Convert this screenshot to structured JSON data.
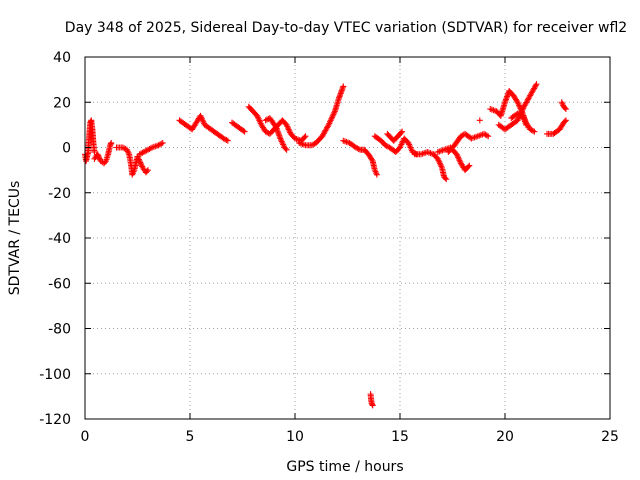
{
  "chart_data": {
    "type": "scatter",
    "title": "Day 348 of 2025, Sidereal Day-to-day VTEC variation (SDTVAR) for receiver wfl2",
    "xlabel": "GPS time / hours",
    "ylabel": "SDTVAR / TECUs",
    "xlim": [
      0,
      25
    ],
    "ylim": [
      -120,
      40
    ],
    "xticks": [
      "0",
      "5",
      "10",
      "15",
      "20",
      "25"
    ],
    "yticks": [
      "40",
      "20",
      "0",
      "-20",
      "-40",
      "-60",
      "-80",
      "-100",
      "-120"
    ],
    "grid": true,
    "marker": "plus",
    "color": "#ff0000",
    "segments": [
      [
        [
          0.0,
          -3
        ],
        [
          0.05,
          -6
        ],
        [
          0.1,
          -4
        ],
        [
          0.15,
          -2
        ]
      ],
      [
        [
          0.15,
          -2
        ],
        [
          0.2,
          5
        ],
        [
          0.25,
          11
        ],
        [
          0.3,
          12
        ],
        [
          0.35,
          8
        ],
        [
          0.4,
          2
        ],
        [
          0.45,
          -2
        ]
      ],
      [
        [
          0.45,
          -5
        ],
        [
          0.6,
          -3
        ],
        [
          0.75,
          -6
        ],
        [
          0.9,
          -7
        ],
        [
          1.0,
          -6
        ],
        [
          1.1,
          -3
        ],
        [
          1.15,
          -1
        ],
        [
          1.2,
          1
        ],
        [
          1.25,
          2
        ]
      ],
      [
        [
          1.5,
          0
        ],
        [
          1.8,
          0
        ],
        [
          2.0,
          -1
        ],
        [
          2.1,
          -3
        ],
        [
          2.2,
          -8
        ],
        [
          2.25,
          -12
        ],
        [
          2.35,
          -10
        ],
        [
          2.45,
          -6
        ],
        [
          2.5,
          -4
        ],
        [
          2.6,
          -6
        ],
        [
          2.75,
          -9
        ],
        [
          2.9,
          -11
        ],
        [
          3.0,
          -10
        ]
      ],
      [
        [
          2.6,
          -3
        ],
        [
          2.8,
          -2
        ],
        [
          3.0,
          -1
        ],
        [
          3.2,
          0
        ],
        [
          3.5,
          1
        ],
        [
          3.7,
          2
        ]
      ],
      [
        [
          4.5,
          12
        ],
        [
          4.8,
          10
        ],
        [
          5.1,
          8
        ],
        [
          5.3,
          11
        ],
        [
          5.5,
          14
        ],
        [
          5.6,
          12
        ],
        [
          5.7,
          10
        ],
        [
          6.0,
          8
        ],
        [
          6.3,
          6
        ],
        [
          6.6,
          4
        ],
        [
          6.8,
          3
        ]
      ],
      [
        [
          7.0,
          11
        ],
        [
          7.3,
          9
        ],
        [
          7.6,
          7
        ]
      ],
      [
        [
          7.8,
          18
        ],
        [
          8.0,
          16
        ],
        [
          8.2,
          14
        ],
        [
          8.4,
          10
        ],
        [
          8.6,
          7
        ],
        [
          8.8,
          6
        ],
        [
          9.0,
          8
        ],
        [
          9.2,
          10
        ],
        [
          9.4,
          12
        ],
        [
          9.6,
          10
        ],
        [
          9.8,
          6
        ],
        [
          10.0,
          4
        ],
        [
          10.3,
          3
        ],
        [
          10.5,
          5
        ]
      ],
      [
        [
          8.6,
          12
        ],
        [
          8.8,
          13
        ],
        [
          9.1,
          9
        ],
        [
          9.3,
          4
        ],
        [
          9.5,
          0
        ],
        [
          9.6,
          -1
        ]
      ],
      [
        [
          10.2,
          2
        ],
        [
          10.5,
          1
        ],
        [
          10.8,
          1
        ],
        [
          11.0,
          2
        ],
        [
          11.3,
          5
        ],
        [
          11.6,
          10
        ],
        [
          11.9,
          16
        ],
        [
          12.1,
          22
        ],
        [
          12.3,
          27
        ]
      ],
      [
        [
          12.3,
          3
        ],
        [
          12.6,
          2
        ],
        [
          12.9,
          0
        ],
        [
          13.1,
          -1
        ],
        [
          13.3,
          -1
        ],
        [
          13.5,
          -3
        ],
        [
          13.7,
          -6
        ],
        [
          13.8,
          -10
        ],
        [
          13.9,
          -12
        ]
      ],
      [
        [
          13.6,
          -109
        ],
        [
          13.62,
          -111
        ],
        [
          13.65,
          -113
        ],
        [
          13.7,
          -114
        ]
      ],
      [
        [
          13.8,
          5
        ],
        [
          14.1,
          3
        ],
        [
          14.3,
          1
        ],
        [
          14.5,
          0
        ],
        [
          14.8,
          -2
        ],
        [
          15.0,
          0
        ],
        [
          15.2,
          4
        ],
        [
          15.4,
          2
        ],
        [
          15.6,
          -2
        ],
        [
          15.8,
          -3
        ]
      ],
      [
        [
          14.4,
          6
        ],
        [
          14.6,
          4
        ],
        [
          14.7,
          3
        ],
        [
          14.9,
          5
        ],
        [
          15.1,
          7
        ]
      ],
      [
        [
          15.7,
          -3
        ],
        [
          16.0,
          -3
        ],
        [
          16.3,
          -2
        ],
        [
          16.6,
          -3
        ],
        [
          16.8,
          -5
        ],
        [
          17.0,
          -9
        ],
        [
          17.1,
          -13
        ],
        [
          17.2,
          -14
        ]
      ],
      [
        [
          16.8,
          -2
        ],
        [
          17.1,
          -1
        ],
        [
          17.4,
          0
        ],
        [
          17.7,
          -3
        ],
        [
          17.9,
          -7
        ],
        [
          18.1,
          -10
        ],
        [
          18.3,
          -8
        ]
      ],
      [
        [
          17.3,
          -2
        ],
        [
          17.6,
          1
        ],
        [
          17.9,
          5
        ],
        [
          18.1,
          6
        ],
        [
          18.4,
          4
        ],
        [
          18.7,
          5
        ],
        [
          19.0,
          6
        ],
        [
          19.2,
          5
        ]
      ],
      [
        [
          18.8,
          12
        ]
      ],
      [
        [
          19.3,
          17
        ],
        [
          19.6,
          16
        ],
        [
          19.8,
          14
        ],
        [
          20.0,
          20
        ],
        [
          20.2,
          25
        ],
        [
          20.4,
          23
        ],
        [
          20.6,
          20
        ],
        [
          20.8,
          16
        ],
        [
          21.0,
          11
        ],
        [
          21.2,
          8
        ],
        [
          21.4,
          7
        ]
      ],
      [
        [
          19.7,
          10
        ],
        [
          20.0,
          8
        ],
        [
          20.3,
          10
        ],
        [
          20.6,
          12
        ],
        [
          20.9,
          18
        ],
        [
          21.2,
          23
        ],
        [
          21.5,
          28
        ]
      ],
      [
        [
          20.3,
          13
        ],
        [
          20.6,
          15
        ],
        [
          20.9,
          13
        ],
        [
          21.0,
          10
        ]
      ],
      [
        [
          22.0,
          6
        ],
        [
          22.3,
          6
        ],
        [
          22.6,
          8
        ],
        [
          22.8,
          11
        ],
        [
          22.9,
          12
        ]
      ],
      [
        [
          22.7,
          20
        ],
        [
          22.8,
          18
        ],
        [
          22.9,
          17
        ]
      ]
    ]
  }
}
